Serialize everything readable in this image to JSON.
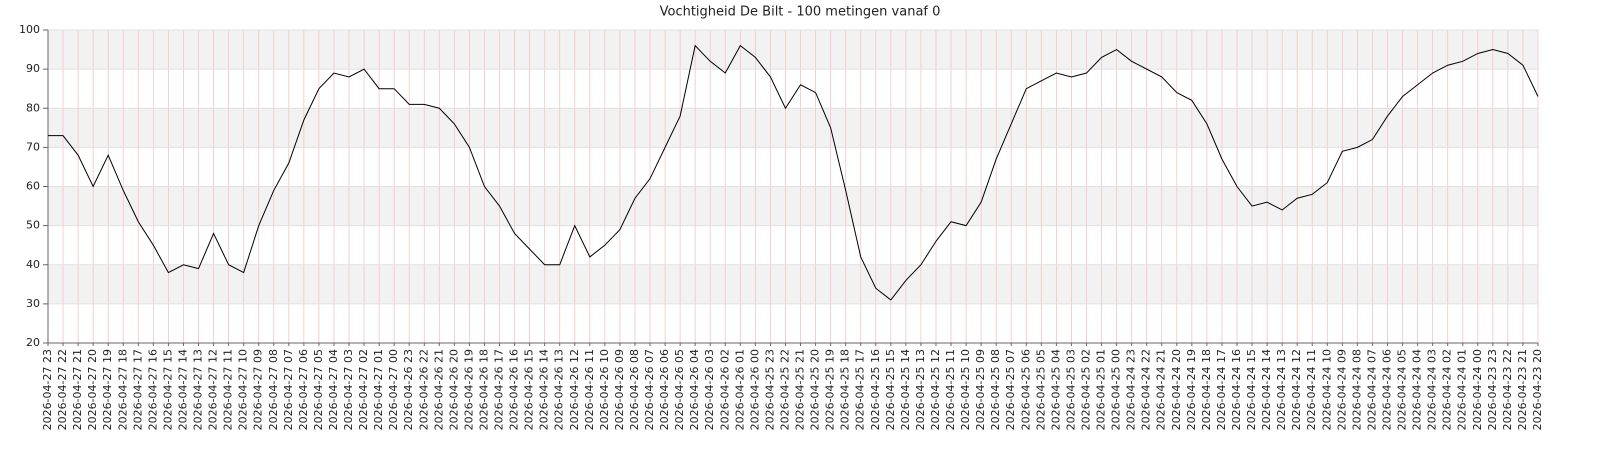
{
  "chart_data": {
    "type": "line",
    "title": "Vochtigheid De Bilt - 100 metingen vanaf 0",
    "categories": [
      "2026-04-27 23",
      "2026-04-27 22",
      "2026-04-27 21",
      "2026-04-27 20",
      "2026-04-27 19",
      "2026-04-27 18",
      "2026-04-27 17",
      "2026-04-27 16",
      "2026-04-27 15",
      "2026-04-27 14",
      "2026-04-27 13",
      "2026-04-27 12",
      "2026-04-27 11",
      "2026-04-27 10",
      "2026-04-27 09",
      "2026-04-27 08",
      "2026-04-27 07",
      "2026-04-27 06",
      "2026-04-27 05",
      "2026-04-27 04",
      "2026-04-27 03",
      "2026-04-27 02",
      "2026-04-27 01",
      "2026-04-27 00",
      "2026-04-26 23",
      "2026-04-26 22",
      "2026-04-26 21",
      "2026-04-26 20",
      "2026-04-26 19",
      "2026-04-26 18",
      "2026-04-26 17",
      "2026-04-26 16",
      "2026-04-26 15",
      "2026-04-26 14",
      "2026-04-26 13",
      "2026-04-26 12",
      "2026-04-26 11",
      "2026-04-26 10",
      "2026-04-26 09",
      "2026-04-26 08",
      "2026-04-26 07",
      "2026-04-26 06",
      "2026-04-26 05",
      "2026-04-26 04",
      "2026-04-26 03",
      "2026-04-26 02",
      "2026-04-26 01",
      "2026-04-26 00",
      "2026-04-25 23",
      "2026-04-25 22",
      "2026-04-25 21",
      "2026-04-25 20",
      "2026-04-25 19",
      "2026-04-25 18",
      "2026-04-25 17",
      "2026-04-25 16",
      "2026-04-25 15",
      "2026-04-25 14",
      "2026-04-25 13",
      "2026-04-25 12",
      "2026-04-25 11",
      "2026-04-25 10",
      "2026-04-25 09",
      "2026-04-25 08",
      "2026-04-25 07",
      "2026-04-25 06",
      "2026-04-25 05",
      "2026-04-25 04",
      "2026-04-25 03",
      "2026-04-25 02",
      "2026-04-25 01",
      "2026-04-25 00",
      "2026-04-24 23",
      "2026-04-24 22",
      "2026-04-24 21",
      "2026-04-24 20",
      "2026-04-24 19",
      "2026-04-24 18",
      "2026-04-24 17",
      "2026-04-24 16",
      "2026-04-24 15",
      "2026-04-24 14",
      "2026-04-24 13",
      "2026-04-24 12",
      "2026-04-24 11",
      "2026-04-24 10",
      "2026-04-24 09",
      "2026-04-24 08",
      "2026-04-24 07",
      "2026-04-24 06",
      "2026-04-24 05",
      "2026-04-24 04",
      "2026-04-24 03",
      "2026-04-24 02",
      "2026-04-24 01",
      "2026-04-24 00",
      "2026-04-23 23",
      "2026-04-23 22",
      "2026-04-23 21",
      "2026-04-23 20"
    ],
    "values": [
      73,
      73,
      68,
      60,
      68,
      59,
      51,
      45,
      38,
      40,
      39,
      48,
      40,
      38,
      50,
      59,
      66,
      77,
      85,
      89,
      88,
      90,
      85,
      85,
      81,
      81,
      80,
      76,
      70,
      60,
      55,
      48,
      44,
      40,
      40,
      50,
      42,
      45,
      49,
      57,
      62,
      70,
      78,
      96,
      92,
      89,
      96,
      93,
      88,
      80,
      86,
      84,
      75,
      59,
      42,
      34,
      31,
      36,
      40,
      46,
      51,
      50,
      56,
      67,
      76,
      85,
      87,
      89,
      88,
      89,
      93,
      95,
      92,
      90,
      88,
      84,
      82,
      76,
      67,
      60,
      55,
      56,
      54,
      57,
      58,
      61,
      69,
      70,
      72,
      78,
      83,
      86,
      89,
      91,
      92,
      94,
      95,
      94,
      91,
      83
    ],
    "color": "#000000",
    "ylim": [
      20,
      100
    ],
    "yticks": [
      20,
      30,
      40,
      50,
      60,
      70,
      80,
      90,
      100
    ],
    "grid": true
  }
}
